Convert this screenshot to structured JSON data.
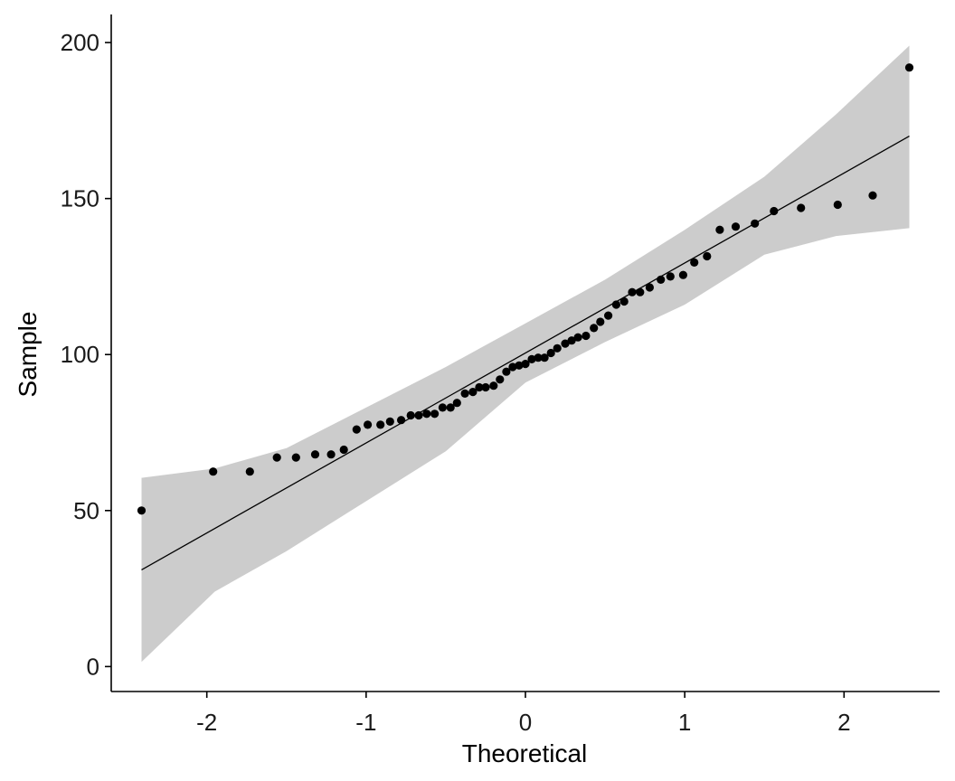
{
  "chart_data": {
    "type": "scatter",
    "title": "",
    "xlabel": "Theoretical",
    "ylabel": "Sample",
    "xlim": [
      -2.6,
      2.6
    ],
    "ylim": [
      -8,
      209
    ],
    "x_ticks": [
      -2,
      -1,
      0,
      1,
      2
    ],
    "y_ticks": [
      0,
      50,
      100,
      150,
      200
    ],
    "x_tick_labels": [
      "-2",
      "-1",
      "0",
      "1",
      "2"
    ],
    "y_tick_labels": [
      "0",
      "50",
      "100",
      "150",
      "200"
    ],
    "grid": false,
    "legend": "none",
    "colors": {
      "points": "#000000",
      "line": "#000000",
      "band": "#cccccc",
      "axis": "#000000"
    },
    "reference_line": {
      "x": [
        -2.41,
        2.41
      ],
      "y": [
        31,
        170
      ]
    },
    "confidence_band": {
      "x": [
        -2.41,
        -1.95,
        -1.5,
        -1.0,
        -0.5,
        0,
        0.5,
        1.0,
        1.5,
        1.95,
        2.41
      ],
      "upper": [
        60.5,
        63.5,
        70,
        83,
        96,
        110,
        124,
        140,
        157,
        177,
        199
      ],
      "lower": [
        1.5,
        24,
        37,
        53,
        69,
        91,
        104,
        116,
        132,
        138,
        140.5
      ]
    },
    "points": [
      {
        "x": -2.41,
        "y": 50
      },
      {
        "x": -1.96,
        "y": 62.5
      },
      {
        "x": -1.73,
        "y": 62.5
      },
      {
        "x": -1.56,
        "y": 67
      },
      {
        "x": -1.44,
        "y": 67
      },
      {
        "x": -1.32,
        "y": 68
      },
      {
        "x": -1.22,
        "y": 68
      },
      {
        "x": -1.14,
        "y": 69.5
      },
      {
        "x": -1.06,
        "y": 76
      },
      {
        "x": -0.99,
        "y": 77.5
      },
      {
        "x": -0.91,
        "y": 77.5
      },
      {
        "x": -0.85,
        "y": 78.5
      },
      {
        "x": -0.78,
        "y": 79
      },
      {
        "x": -0.72,
        "y": 80.5
      },
      {
        "x": -0.67,
        "y": 80.5
      },
      {
        "x": -0.62,
        "y": 81
      },
      {
        "x": -0.57,
        "y": 81
      },
      {
        "x": -0.52,
        "y": 83
      },
      {
        "x": -0.47,
        "y": 83
      },
      {
        "x": -0.43,
        "y": 84.5
      },
      {
        "x": -0.38,
        "y": 87.5
      },
      {
        "x": -0.33,
        "y": 88
      },
      {
        "x": -0.29,
        "y": 89.5
      },
      {
        "x": -0.25,
        "y": 89.5
      },
      {
        "x": -0.2,
        "y": 90
      },
      {
        "x": -0.16,
        "y": 92
      },
      {
        "x": -0.12,
        "y": 94.5
      },
      {
        "x": -0.08,
        "y": 96
      },
      {
        "x": -0.04,
        "y": 96.5
      },
      {
        "x": 0.0,
        "y": 97
      },
      {
        "x": 0.04,
        "y": 98.5
      },
      {
        "x": 0.08,
        "y": 99
      },
      {
        "x": 0.12,
        "y": 99
      },
      {
        "x": 0.16,
        "y": 100.5
      },
      {
        "x": 0.2,
        "y": 102
      },
      {
        "x": 0.25,
        "y": 103.5
      },
      {
        "x": 0.29,
        "y": 104.5
      },
      {
        "x": 0.33,
        "y": 105.5
      },
      {
        "x": 0.38,
        "y": 106
      },
      {
        "x": 0.43,
        "y": 108.5
      },
      {
        "x": 0.47,
        "y": 110.5
      },
      {
        "x": 0.52,
        "y": 112.5
      },
      {
        "x": 0.57,
        "y": 116
      },
      {
        "x": 0.62,
        "y": 117
      },
      {
        "x": 0.67,
        "y": 120
      },
      {
        "x": 0.72,
        "y": 120
      },
      {
        "x": 0.78,
        "y": 121.5
      },
      {
        "x": 0.85,
        "y": 124
      },
      {
        "x": 0.91,
        "y": 125
      },
      {
        "x": 0.99,
        "y": 125.5
      },
      {
        "x": 1.06,
        "y": 129.5
      },
      {
        "x": 1.14,
        "y": 131.5
      },
      {
        "x": 1.22,
        "y": 140
      },
      {
        "x": 1.32,
        "y": 141
      },
      {
        "x": 1.44,
        "y": 142
      },
      {
        "x": 1.56,
        "y": 146
      },
      {
        "x": 1.73,
        "y": 147
      },
      {
        "x": 1.96,
        "y": 148
      },
      {
        "x": 2.18,
        "y": 151
      },
      {
        "x": 2.41,
        "y": 192
      }
    ]
  }
}
